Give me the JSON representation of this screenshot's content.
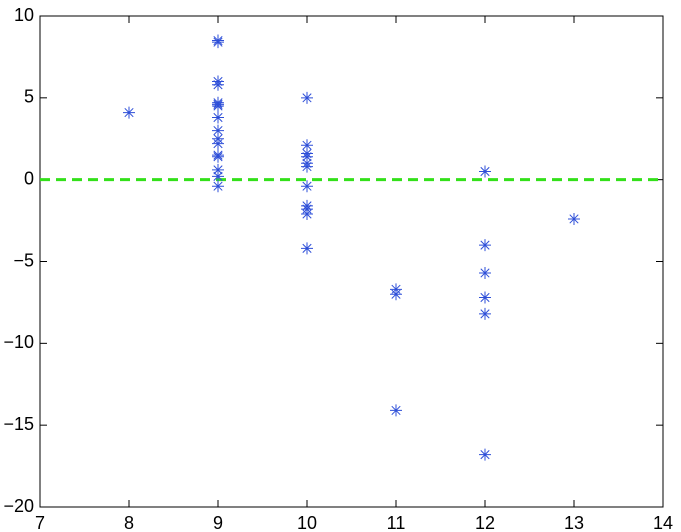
{
  "chart_data": {
    "type": "scatter",
    "x": [
      8,
      9,
      9,
      9,
      9,
      9,
      9,
      9,
      9,
      9,
      9,
      9,
      9,
      9,
      9,
      9,
      9,
      10,
      10,
      10,
      10,
      10,
      10,
      10,
      10,
      10,
      10,
      10,
      11,
      11,
      11,
      12,
      12,
      12,
      12,
      12,
      12,
      13
    ],
    "values": [
      4.1,
      8.5,
      8.4,
      6.0,
      5.8,
      4.7,
      4.6,
      4.5,
      3.8,
      3.0,
      2.5,
      2.2,
      1.5,
      1.4,
      0.6,
      0.2,
      -0.4,
      5.0,
      2.1,
      1.6,
      1.4,
      1.0,
      0.8,
      -0.4,
      -1.6,
      -1.8,
      -2.1,
      -4.2,
      -6.7,
      -7.0,
      -14.1,
      0.5,
      -4.0,
      -5.7,
      -7.2,
      -8.2,
      -16.8,
      -2.4
    ],
    "color": "#2e4fd8",
    "reference_line": {
      "value": 0,
      "color": "#33e01a"
    },
    "xlim": [
      7,
      14
    ],
    "xticks": [
      7,
      8,
      9,
      10,
      11,
      12,
      13,
      14
    ],
    "ylim": [
      -20,
      10
    ],
    "yticks": [
      {
        "value": -20,
        "label": "−20"
      },
      {
        "value": -15,
        "label": "−15"
      },
      {
        "value": -10,
        "label": "−10"
      },
      {
        "value": -5,
        "label": "−5"
      },
      0,
      5,
      10
    ],
    "grid": false
  }
}
